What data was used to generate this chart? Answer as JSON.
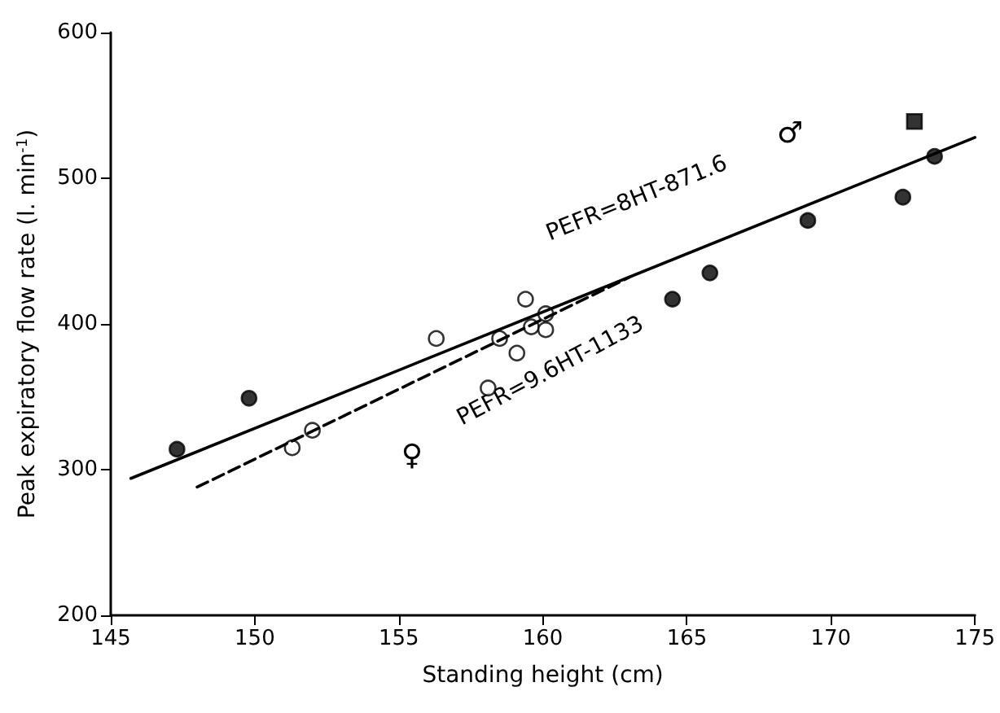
{
  "chart_data": {
    "type": "scatter",
    "xlabel": "Standing height (cm)",
    "ylabel": "Peak expiratory flow rate (l. min$^{-1}$)",
    "xlim": [
      145,
      175
    ],
    "xticks": [
      145,
      150,
      155,
      160,
      165,
      170,
      175
    ],
    "ylim": [
      200,
      600
    ],
    "yticks": [
      200,
      300,
      400,
      500,
      600
    ],
    "grid": false,
    "series": [
      {
        "color": "#000000",
        "marker": "circle",
        "x": [
          147.3,
          149.8,
          164.5,
          165.8,
          169.2,
          172.5,
          173.6
        ],
        "values": [
          314,
          349,
          417,
          435,
          471,
          487,
          515
        ]
      },
      {
        "color": "#000000",
        "marker": "square",
        "x": [
          172.9
        ],
        "values": [
          539
        ]
      },
      {
        "color": "#ffffff",
        "marker": "circle",
        "x": [
          151.3,
          152.0,
          156.3,
          158.1,
          158.5,
          159.1,
          159.4,
          159.6,
          160.1,
          160.1
        ],
        "values": [
          315,
          327,
          390,
          356,
          390,
          380,
          417,
          398,
          407,
          396
        ]
      },
      {
        "type": "line",
        "color": "#000000",
        "marker": "none",
        "line_style": "solid",
        "x": [
          145.7,
          175
        ],
        "values": [
          294,
          528
        ]
      },
      {
        "type": "line",
        "color": "#000000",
        "marker": "none",
        "line_style": "dashed",
        "x": [
          148,
          163
        ],
        "values": [
          288,
          432
        ]
      }
    ],
    "annotations": [
      "PEFR=8HT-871.6",
      "PEFR=9.6HT-1133",
      "♀",
      "♂"
    ]
  }
}
